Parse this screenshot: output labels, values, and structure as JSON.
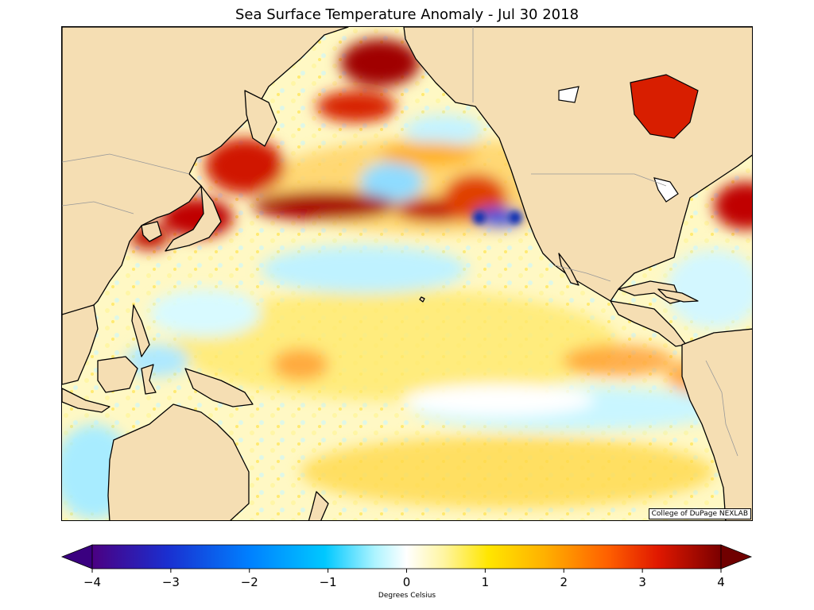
{
  "title": "Sea Surface Temperature Anomaly - Jul 30 2018",
  "credit": "College of DuPage NEXLAB",
  "colorbar": {
    "label": "Degrees Celsius",
    "min": -4,
    "max": 4,
    "extend": "both",
    "ticks": [
      "−4",
      "−3",
      "−2",
      "−1",
      "0",
      "1",
      "2",
      "3",
      "4"
    ],
    "tick_values": [
      -4,
      -3,
      -2,
      -1,
      0,
      1,
      2,
      3,
      4
    ],
    "colors": [
      "#4b0082",
      "#1a2fd0",
      "#0080ff",
      "#00c8ff",
      "#aef4ff",
      "#ffffff",
      "#fff5a0",
      "#ffe600",
      "#ffb000",
      "#ff6000",
      "#e01800",
      "#9a0000",
      "#7a0000"
    ]
  },
  "map": {
    "projection": "cylindrical",
    "region": "Pacific Ocean",
    "land_color": "#f5deb3",
    "coast_color": "#000000",
    "border_color": "#999999"
  }
}
